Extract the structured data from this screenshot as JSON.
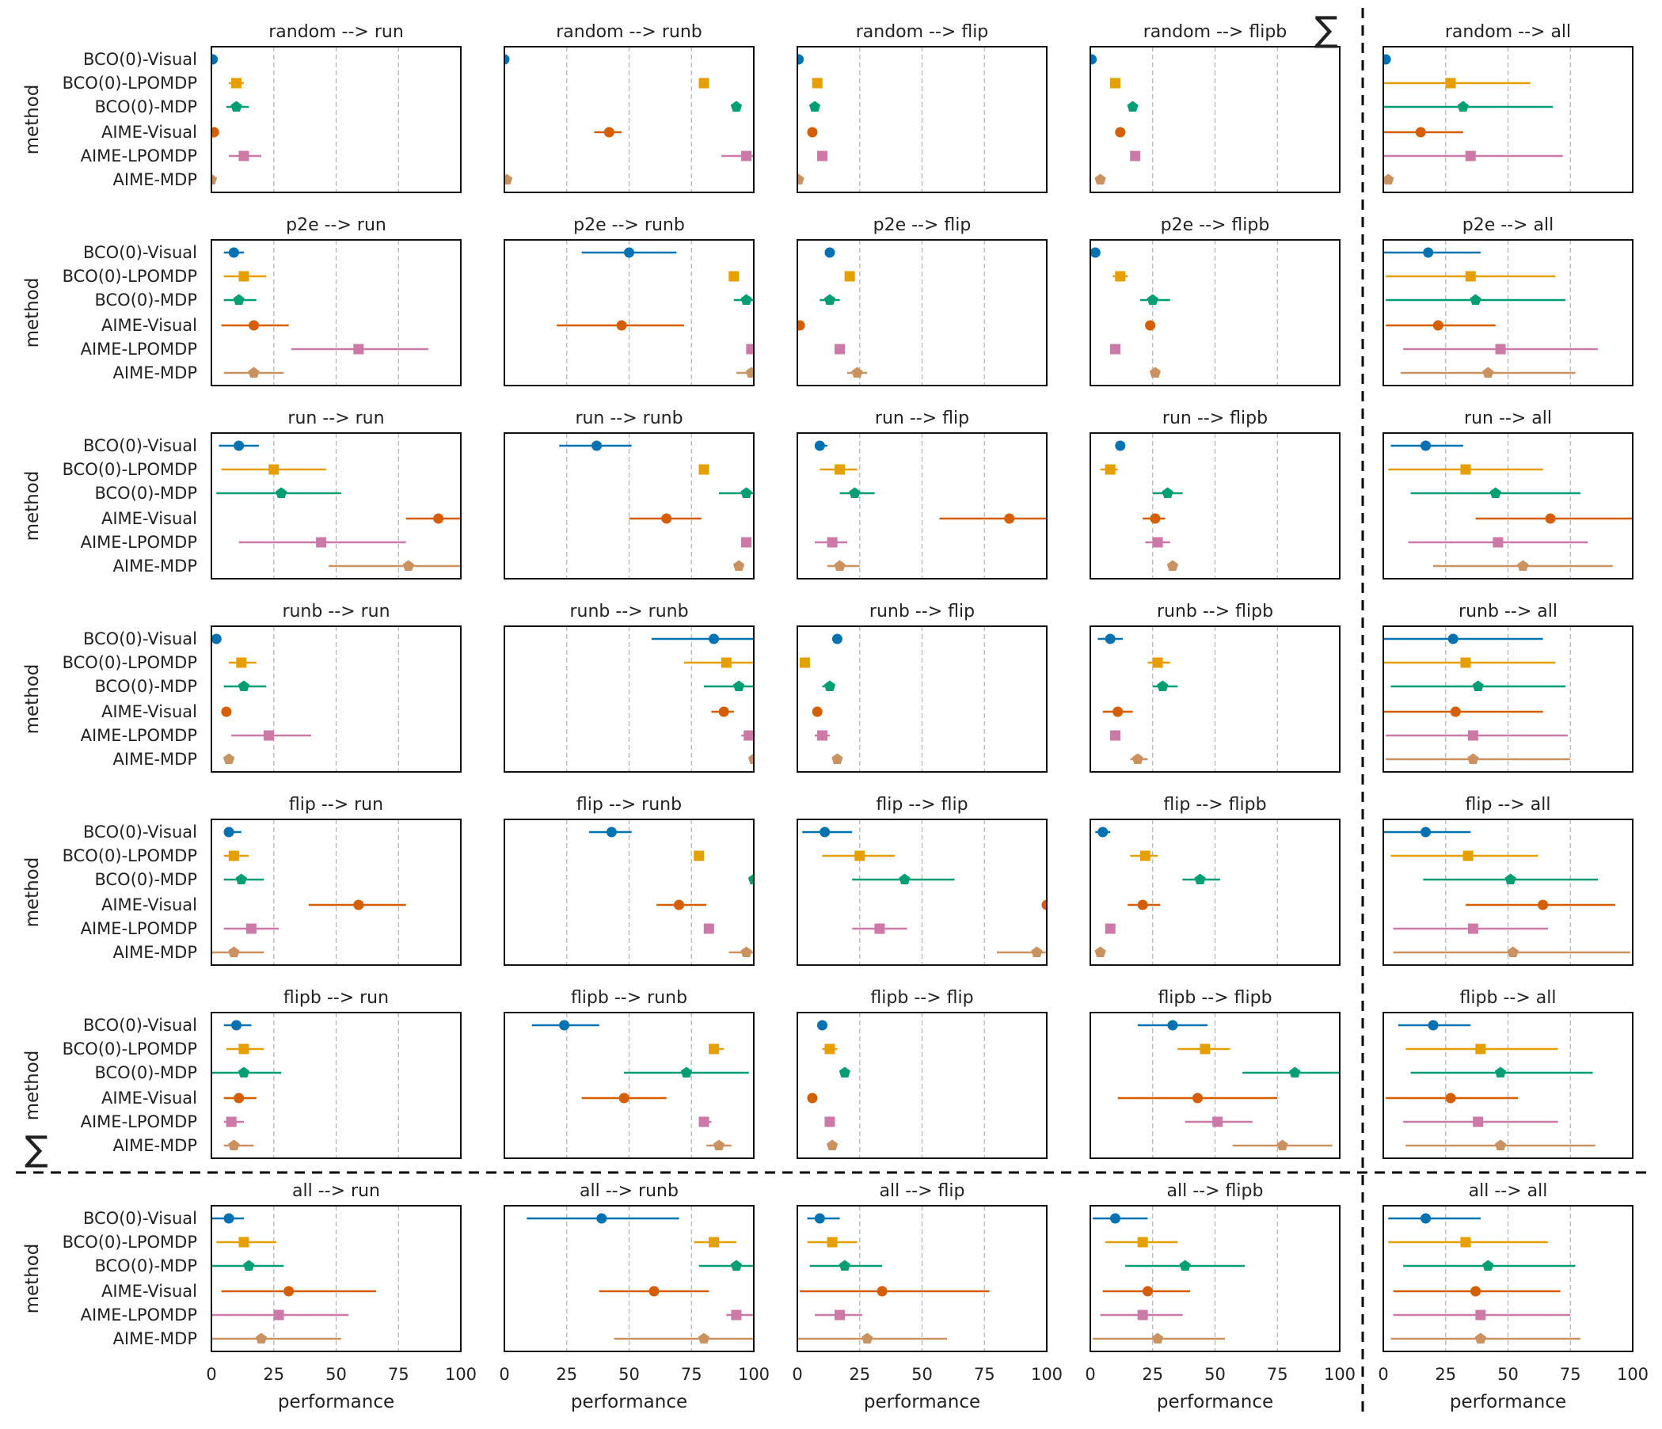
{
  "figure": {
    "xlabel": "performance",
    "ylabel": "method",
    "sum_symbol": "∑",
    "x_ticks": [
      0,
      25,
      50,
      75,
      100
    ],
    "xlim": [
      0,
      100
    ],
    "methods": [
      "BCO(0)-Visual",
      "BCO(0)-LPOMDP",
      "BCO(0)-MDP",
      "AIME-Visual",
      "AIME-LPOMDP",
      "AIME-MDP"
    ],
    "column_targets": [
      "run",
      "runb",
      "flip",
      "flipb",
      "all"
    ],
    "row_sources": [
      "random",
      "p2e",
      "run",
      "runb",
      "flip",
      "flipb",
      "all"
    ],
    "title_separator": " -->  "
  },
  "series_styles": [
    {
      "name": "BCO(0)-Visual",
      "color": "#0072b2",
      "marker": "circle"
    },
    {
      "name": "BCO(0)-LPOMDP",
      "color": "#e69f00",
      "marker": "square"
    },
    {
      "name": "BCO(0)-MDP",
      "color": "#009e73",
      "marker": "pentagon"
    },
    {
      "name": "AIME-Visual",
      "color": "#d55e00",
      "marker": "circle"
    },
    {
      "name": "AIME-LPOMDP",
      "color": "#cc79a7",
      "marker": "square"
    },
    {
      "name": "AIME-MDP",
      "color": "#ca9161",
      "marker": "pentagon"
    }
  ],
  "chart_data": {
    "type": "scatter",
    "description_kind": "point estimates with horizontal interval bars, grid of panels source --> target",
    "xlabel": "performance",
    "ylabel": "method",
    "xlim": [
      0,
      100
    ],
    "panels": [
      {
        "source": "random",
        "target": "run",
        "points": [
          [
            0.5,
            0,
            1
          ],
          [
            10,
            7,
            13
          ],
          [
            10,
            6,
            15
          ],
          [
            1,
            0,
            2
          ],
          [
            13,
            7,
            20
          ],
          [
            0,
            0,
            1
          ]
        ]
      },
      {
        "source": "random",
        "target": "runb",
        "points": [
          [
            0,
            0,
            1
          ],
          [
            80,
            79,
            81
          ],
          [
            93,
            92,
            94
          ],
          [
            42,
            36,
            47
          ],
          [
            97,
            87,
            100
          ],
          [
            1,
            0,
            2
          ]
        ]
      },
      {
        "source": "random",
        "target": "flip",
        "points": [
          [
            0.5,
            0,
            1
          ],
          [
            8,
            6,
            10
          ],
          [
            7,
            6,
            8
          ],
          [
            6,
            5,
            7
          ],
          [
            10,
            9,
            11
          ],
          [
            0.5,
            0,
            1
          ]
        ]
      },
      {
        "source": "random",
        "target": "flipb",
        "points": [
          [
            0.5,
            0,
            1
          ],
          [
            10,
            9,
            11
          ],
          [
            17,
            16,
            18
          ],
          [
            12,
            11,
            13
          ],
          [
            18,
            17,
            19
          ],
          [
            4,
            2,
            6
          ]
        ]
      },
      {
        "source": "random",
        "target": "all",
        "points": [
          [
            1,
            0,
            2
          ],
          [
            27,
            0,
            59
          ],
          [
            32,
            0,
            68
          ],
          [
            15,
            0,
            32
          ],
          [
            35,
            0,
            72
          ],
          [
            2,
            1,
            3
          ]
        ]
      },
      {
        "source": "p2e",
        "target": "run",
        "points": [
          [
            9,
            5,
            13
          ],
          [
            13,
            5,
            22
          ],
          [
            11,
            5,
            18
          ],
          [
            17,
            4,
            31
          ],
          [
            59,
            32,
            87
          ],
          [
            17,
            5,
            29
          ]
        ]
      },
      {
        "source": "p2e",
        "target": "runb",
        "points": [
          [
            50,
            31,
            69
          ],
          [
            92,
            91,
            93
          ],
          [
            97,
            92,
            100
          ],
          [
            47,
            21,
            72
          ],
          [
            99,
            97,
            100
          ],
          [
            99,
            93,
            100
          ]
        ]
      },
      {
        "source": "p2e",
        "target": "flip",
        "points": [
          [
            13,
            12,
            14
          ],
          [
            21,
            19,
            23
          ],
          [
            13,
            9,
            17
          ],
          [
            1,
            0,
            2
          ],
          [
            17,
            16,
            18
          ],
          [
            24,
            20,
            28
          ]
        ]
      },
      {
        "source": "p2e",
        "target": "flipb",
        "points": [
          [
            2,
            1,
            3
          ],
          [
            12,
            9,
            15
          ],
          [
            25,
            20,
            32
          ],
          [
            24,
            23,
            25
          ],
          [
            10,
            9,
            11
          ],
          [
            26,
            25,
            27
          ]
        ]
      },
      {
        "source": "p2e",
        "target": "all",
        "points": [
          [
            18,
            0,
            39
          ],
          [
            35,
            1,
            69
          ],
          [
            37,
            1,
            73
          ],
          [
            22,
            1,
            45
          ],
          [
            47,
            8,
            86
          ],
          [
            42,
            7,
            77
          ]
        ]
      },
      {
        "source": "run",
        "target": "run",
        "points": [
          [
            11,
            3,
            19
          ],
          [
            25,
            4,
            46
          ],
          [
            28,
            2,
            52
          ],
          [
            91,
            78,
            100
          ],
          [
            44,
            11,
            78
          ],
          [
            79,
            47,
            100
          ]
        ]
      },
      {
        "source": "run",
        "target": "runb",
        "points": [
          [
            37,
            22,
            51
          ],
          [
            80,
            79,
            81
          ],
          [
            97,
            86,
            100
          ],
          [
            65,
            50,
            79
          ],
          [
            97,
            96,
            98
          ],
          [
            94,
            92,
            96
          ]
        ]
      },
      {
        "source": "run",
        "target": "flip",
        "points": [
          [
            9,
            7,
            12
          ],
          [
            17,
            9,
            24
          ],
          [
            23,
            17,
            31
          ],
          [
            85,
            57,
            100
          ],
          [
            14,
            7,
            20
          ],
          [
            17,
            12,
            25
          ]
        ]
      },
      {
        "source": "run",
        "target": "flipb",
        "points": [
          [
            12,
            11,
            13
          ],
          [
            8,
            4,
            11
          ],
          [
            31,
            25,
            37
          ],
          [
            26,
            21,
            30
          ],
          [
            27,
            22,
            32
          ],
          [
            33,
            31,
            35
          ]
        ]
      },
      {
        "source": "run",
        "target": "all",
        "points": [
          [
            17,
            3,
            32
          ],
          [
            33,
            2,
            64
          ],
          [
            45,
            11,
            79
          ],
          [
            67,
            37,
            100
          ],
          [
            46,
            10,
            82
          ],
          [
            56,
            20,
            92
          ]
        ]
      },
      {
        "source": "runb",
        "target": "run",
        "points": [
          [
            2,
            1,
            3
          ],
          [
            12,
            7,
            18
          ],
          [
            13,
            5,
            22
          ],
          [
            6,
            4,
            8
          ],
          [
            23,
            8,
            40
          ],
          [
            7,
            5,
            9
          ]
        ]
      },
      {
        "source": "runb",
        "target": "runb",
        "points": [
          [
            84,
            59,
            100
          ],
          [
            89,
            72,
            100
          ],
          [
            94,
            80,
            100
          ],
          [
            88,
            83,
            92
          ],
          [
            98,
            95,
            100
          ],
          [
            100,
            99,
            100
          ]
        ]
      },
      {
        "source": "runb",
        "target": "flip",
        "points": [
          [
            16,
            15,
            17
          ],
          [
            3,
            2,
            4
          ],
          [
            13,
            10,
            15
          ],
          [
            8,
            7,
            9
          ],
          [
            10,
            7,
            13
          ],
          [
            16,
            15,
            17
          ]
        ]
      },
      {
        "source": "runb",
        "target": "flipb",
        "points": [
          [
            8,
            3,
            13
          ],
          [
            27,
            23,
            32
          ],
          [
            29,
            25,
            35
          ],
          [
            11,
            5,
            17
          ],
          [
            10,
            9,
            11
          ],
          [
            19,
            16,
            23
          ]
        ]
      },
      {
        "source": "runb",
        "target": "all",
        "points": [
          [
            28,
            0,
            64
          ],
          [
            33,
            0,
            69
          ],
          [
            38,
            3,
            73
          ],
          [
            29,
            0,
            64
          ],
          [
            36,
            1,
            74
          ],
          [
            36,
            1,
            75
          ]
        ]
      },
      {
        "source": "flip",
        "target": "run",
        "points": [
          [
            7,
            5,
            12
          ],
          [
            9,
            5,
            15
          ],
          [
            12,
            5,
            21
          ],
          [
            59,
            39,
            78
          ],
          [
            16,
            5,
            27
          ],
          [
            9,
            0,
            21
          ]
        ]
      },
      {
        "source": "flip",
        "target": "runb",
        "points": [
          [
            43,
            34,
            51
          ],
          [
            78,
            77,
            79
          ],
          [
            100,
            98,
            100
          ],
          [
            70,
            61,
            81
          ],
          [
            82,
            80,
            84
          ],
          [
            97,
            90,
            100
          ]
        ]
      },
      {
        "source": "flip",
        "target": "flip",
        "points": [
          [
            11,
            2,
            22
          ],
          [
            25,
            10,
            39
          ],
          [
            43,
            22,
            63
          ],
          [
            100,
            99,
            100
          ],
          [
            33,
            22,
            44
          ],
          [
            96,
            80,
            100
          ]
        ]
      },
      {
        "source": "flip",
        "target": "flipb",
        "points": [
          [
            5,
            2,
            8
          ],
          [
            22,
            16,
            27
          ],
          [
            44,
            37,
            52
          ],
          [
            21,
            15,
            28
          ],
          [
            8,
            7,
            9
          ],
          [
            4,
            3,
            5
          ]
        ]
      },
      {
        "source": "flip",
        "target": "all",
        "points": [
          [
            17,
            0,
            35
          ],
          [
            34,
            3,
            62
          ],
          [
            51,
            16,
            86
          ],
          [
            64,
            33,
            93
          ],
          [
            36,
            4,
            66
          ],
          [
            52,
            4,
            99
          ]
        ]
      },
      {
        "source": "flipb",
        "target": "run",
        "points": [
          [
            10,
            5,
            16
          ],
          [
            13,
            6,
            21
          ],
          [
            13,
            0,
            28
          ],
          [
            11,
            5,
            18
          ],
          [
            8,
            5,
            13
          ],
          [
            9,
            5,
            17
          ]
        ]
      },
      {
        "source": "flipb",
        "target": "runb",
        "points": [
          [
            24,
            11,
            38
          ],
          [
            84,
            82,
            88
          ],
          [
            73,
            48,
            98
          ],
          [
            48,
            31,
            65
          ],
          [
            80,
            78,
            83
          ],
          [
            86,
            81,
            91
          ]
        ]
      },
      {
        "source": "flipb",
        "target": "flip",
        "points": [
          [
            10,
            9,
            11
          ],
          [
            13,
            10,
            16
          ],
          [
            19,
            18,
            20
          ],
          [
            6,
            5,
            7
          ],
          [
            13,
            12,
            14
          ],
          [
            14,
            13,
            15
          ]
        ]
      },
      {
        "source": "flipb",
        "target": "flipb",
        "points": [
          [
            33,
            19,
            47
          ],
          [
            46,
            35,
            56
          ],
          [
            82,
            61,
            100
          ],
          [
            43,
            11,
            75
          ],
          [
            51,
            38,
            65
          ],
          [
            77,
            57,
            97
          ]
        ]
      },
      {
        "source": "flipb",
        "target": "all",
        "points": [
          [
            20,
            6,
            35
          ],
          [
            39,
            9,
            70
          ],
          [
            47,
            11,
            84
          ],
          [
            27,
            1,
            54
          ],
          [
            38,
            8,
            70
          ],
          [
            47,
            9,
            85
          ]
        ]
      },
      {
        "source": "all",
        "target": "run",
        "points": [
          [
            7,
            0,
            13
          ],
          [
            13,
            2,
            26
          ],
          [
            15,
            0,
            29
          ],
          [
            31,
            4,
            66
          ],
          [
            27,
            0,
            55
          ],
          [
            20,
            0,
            52
          ]
        ]
      },
      {
        "source": "all",
        "target": "runb",
        "points": [
          [
            39,
            9,
            70
          ],
          [
            84,
            76,
            93
          ],
          [
            93,
            78,
            100
          ],
          [
            60,
            38,
            82
          ],
          [
            93,
            89,
            100
          ],
          [
            80,
            44,
            100
          ]
        ]
      },
      {
        "source": "all",
        "target": "flip",
        "points": [
          [
            9,
            4,
            17
          ],
          [
            14,
            4,
            24
          ],
          [
            19,
            5,
            34
          ],
          [
            34,
            1,
            77
          ],
          [
            17,
            7,
            26
          ],
          [
            28,
            0,
            60
          ]
        ]
      },
      {
        "source": "all",
        "target": "flipb",
        "points": [
          [
            10,
            1,
            23
          ],
          [
            21,
            6,
            35
          ],
          [
            38,
            14,
            62
          ],
          [
            23,
            5,
            40
          ],
          [
            21,
            4,
            37
          ],
          [
            27,
            1,
            54
          ]
        ]
      },
      {
        "source": "all",
        "target": "all",
        "points": [
          [
            17,
            2,
            39
          ],
          [
            33,
            2,
            66
          ],
          [
            42,
            8,
            77
          ],
          [
            37,
            4,
            71
          ],
          [
            39,
            4,
            75
          ],
          [
            39,
            3,
            79
          ]
        ]
      }
    ]
  }
}
